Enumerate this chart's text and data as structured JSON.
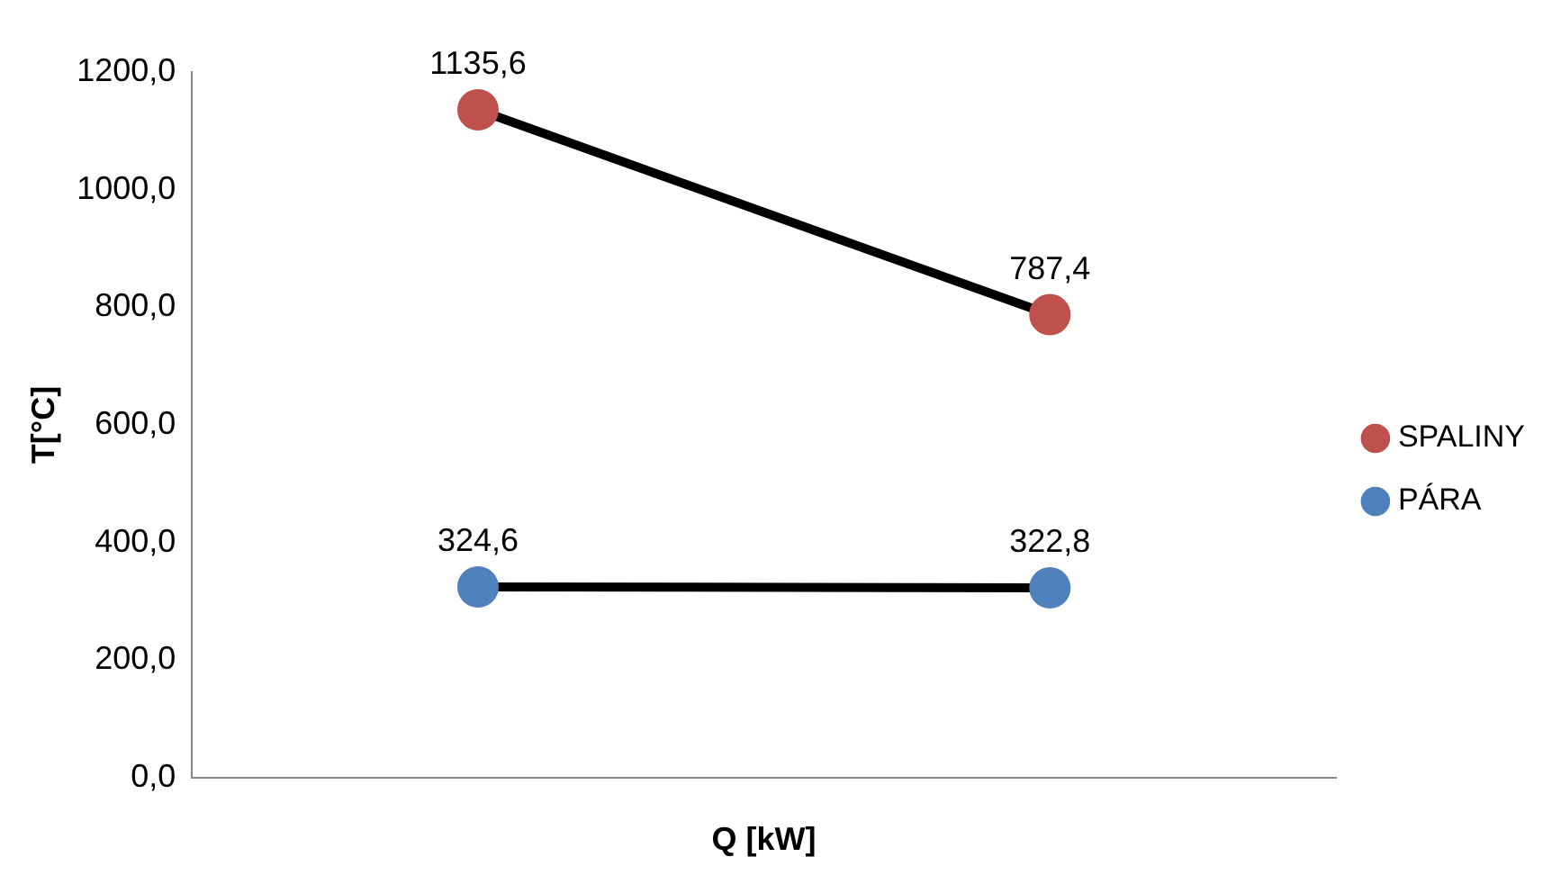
{
  "chart_data": {
    "type": "line",
    "xlabel": "Q [kW]",
    "ylabel": "T[°C]",
    "categories": [
      null,
      null
    ],
    "series": [
      {
        "name": "SPALINY",
        "color": "#c0504d",
        "values": [
          1135.6,
          787.4
        ],
        "value_labels": [
          "1135,6",
          "787,4"
        ]
      },
      {
        "name": "PÁRA",
        "color": "#4f81bd",
        "values": [
          324.6,
          322.8
        ],
        "value_labels": [
          "324,6",
          "322,8"
        ]
      }
    ],
    "ylim": [
      0,
      1200
    ],
    "yticks": [
      {
        "value": 0,
        "label": "0,0"
      },
      {
        "value": 200,
        "label": "200,0"
      },
      {
        "value": 400,
        "label": "400,0"
      },
      {
        "value": 600,
        "label": "600,0"
      },
      {
        "value": 800,
        "label": "800,0"
      },
      {
        "value": 1000,
        "label": "1000,0"
      },
      {
        "value": 1200,
        "label": "1200,0"
      }
    ],
    "grid": false,
    "legend": "right",
    "marker": "circle",
    "line_style": "solid"
  }
}
